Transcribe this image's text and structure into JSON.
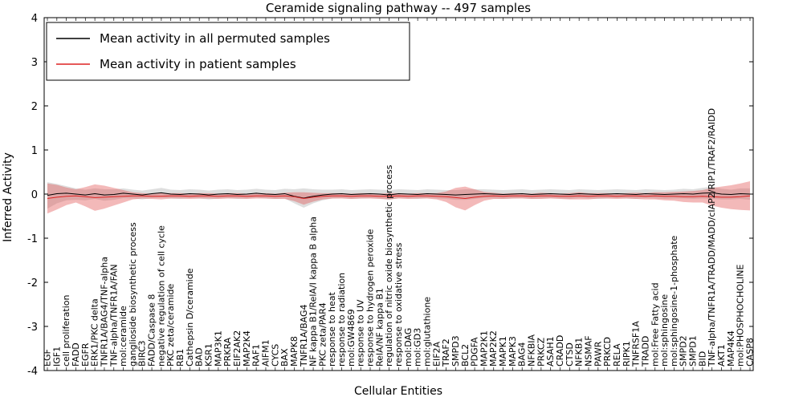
{
  "chart_data": {
    "type": "line",
    "title": "Ceramide signaling pathway -- 497 samples",
    "xlabel": "Cellular Entities",
    "ylabel": "Inferred Activity",
    "ylim": [
      -4,
      4
    ],
    "yticks": [
      4,
      3,
      2,
      1,
      0,
      -1,
      -2,
      -3,
      -4
    ],
    "grid": false,
    "legend_position": "upper left",
    "categories": [
      "EGF",
      "IGF1",
      "cell proliferation",
      "FADD",
      "EGFR",
      "ERK1/PKC delta",
      "TNFR1A/BAG4/TNF-alpha",
      "TNF-alpha/TNFR1A/FAN",
      "mol:ceramide",
      "ganglioside biosynthetic process",
      "BIRC3",
      "FADD/Caspase 8",
      "negative regulation of cell cycle",
      "PKC zeta/ceramide",
      "RB1",
      "Cathepsin D/ceramide",
      "BAD",
      "KSR1",
      "MAP3K1",
      "PRKRA",
      "EIF2AK2",
      "MAP2K4",
      "RAF1",
      "AIFM1",
      "CYCS",
      "BAX",
      "MAPK8",
      "TNFR1A/BAG4",
      "NF kappa B1/RelA/I kappa B alpha",
      "PKC zeta/PAR4",
      "response to heat",
      "response to radiation",
      "mol:GW4869",
      "response to UV",
      "response to hydrogen peroxide",
      "RelA/NF kappa B1",
      "regulation of nitric oxide biosynthetic process",
      "response to oxidative stress",
      "mol:DAG",
      "mol:GD3",
      "mol:glutathione",
      "EIF2A",
      "TRAF2",
      "SMPD3",
      "BCL2",
      "PDGFA",
      "MAP2K1",
      "MAP2K2",
      "MAPK1",
      "MAPK3",
      "BAG4",
      "NFKBIA",
      "PRKCZ",
      "ASAH1",
      "CRADD",
      "CTSD",
      "NFKB1",
      "NSMAF",
      "PAWR",
      "PRKCD",
      "RELA",
      "RIPK1",
      "TNFRSF1A",
      "TRADD",
      "mol:Free Fatty acid",
      "mol:sphingosine",
      "mol:sphingosine-1-phosphate",
      "SMPD2",
      "SMPD1",
      "BID",
      "TNF-alpha/TNFR1A/TRADD/MADD/cIAP2/RIP1/TRAF2/RAIDD",
      "AKT1",
      "MAP4K4",
      "mol:PHOSPHOCHOLINE",
      "CASP8"
    ],
    "series": [
      {
        "id": "permuted",
        "name": "Mean activity in all permuted samples",
        "color": "#000000",
        "band_color": "#bdbdbd",
        "band_opacity": 0.5,
        "values": [
          -0.03,
          0.01,
          0.02,
          0,
          -0.02,
          0.01,
          -0.02,
          -0.01,
          0.02,
          0,
          -0.02,
          0.01,
          0.03,
          0,
          -0.01,
          0.01,
          0,
          -0.02,
          0,
          0.01,
          -0.01,
          0,
          0.02,
          0,
          -0.01,
          0.01,
          -0.05,
          -0.09,
          -0.05,
          -0.02,
          0,
          0.01,
          -0.01,
          0,
          0.01,
          0,
          -0.02,
          0.01,
          0,
          -0.01,
          0.01,
          0,
          -0.01,
          -0.02,
          -0.01,
          0,
          0.01,
          0,
          -0.01,
          0,
          0.01,
          -0.01,
          0,
          0.01,
          0,
          -0.01,
          0.01,
          0,
          -0.01,
          0,
          0.01,
          0,
          -0.01,
          0.01,
          0,
          -0.01,
          0,
          0.01,
          0,
          0.02,
          0.03,
          0,
          -0.01,
          0.01,
          0
        ],
        "band_halfwidth": [
          0.3,
          0.22,
          0.16,
          0.13,
          0.12,
          0.12,
          0.13,
          0.12,
          0.11,
          0.1,
          0.1,
          0.1,
          0.11,
          0.1,
          0.1,
          0.1,
          0.1,
          0.1,
          0.1,
          0.1,
          0.1,
          0.1,
          0.1,
          0.1,
          0.1,
          0.11,
          0.16,
          0.22,
          0.16,
          0.12,
          0.1,
          0.1,
          0.1,
          0.1,
          0.1,
          0.1,
          0.11,
          0.1,
          0.1,
          0.1,
          0.1,
          0.1,
          0.1,
          0.11,
          0.12,
          0.11,
          0.1,
          0.1,
          0.1,
          0.1,
          0.1,
          0.1,
          0.1,
          0.1,
          0.1,
          0.1,
          0.1,
          0.1,
          0.1,
          0.1,
          0.1,
          0.1,
          0.1,
          0.1,
          0.1,
          0.1,
          0.1,
          0.11,
          0.11,
          0.12,
          0.14,
          0.12,
          0.11,
          0.12,
          0.13
        ]
      },
      {
        "id": "patient",
        "name": "Mean activity in patient samples",
        "color": "#dd2222",
        "band_color": "#e05050",
        "band_opacity": 0.4,
        "values": [
          -0.1,
          -0.07,
          -0.05,
          -0.04,
          -0.06,
          -0.08,
          -0.07,
          -0.06,
          -0.05,
          -0.04,
          -0.04,
          -0.05,
          -0.05,
          -0.04,
          -0.04,
          -0.05,
          -0.04,
          -0.04,
          -0.05,
          -0.04,
          -0.04,
          -0.05,
          -0.04,
          -0.04,
          -0.05,
          -0.04,
          -0.06,
          -0.1,
          -0.07,
          -0.05,
          -0.04,
          -0.04,
          -0.05,
          -0.04,
          -0.04,
          -0.05,
          -0.05,
          -0.04,
          -0.05,
          -0.04,
          -0.04,
          -0.05,
          -0.06,
          -0.08,
          -0.1,
          -0.07,
          -0.05,
          -0.04,
          -0.05,
          -0.04,
          -0.04,
          -0.05,
          -0.04,
          -0.04,
          -0.05,
          -0.05,
          -0.04,
          -0.05,
          -0.04,
          -0.04,
          -0.05,
          -0.04,
          -0.04,
          -0.05,
          -0.04,
          -0.05,
          -0.05,
          -0.06,
          -0.06,
          -0.05,
          -0.06,
          -0.07,
          -0.07,
          -0.06,
          -0.04
        ],
        "band_halfwidth": [
          0.34,
          0.28,
          0.2,
          0.15,
          0.22,
          0.3,
          0.26,
          0.2,
          0.14,
          0.08,
          0.06,
          0.06,
          0.07,
          0.06,
          0.06,
          0.06,
          0.06,
          0.06,
          0.06,
          0.06,
          0.06,
          0.06,
          0.06,
          0.06,
          0.06,
          0.07,
          0.1,
          0.14,
          0.1,
          0.07,
          0.06,
          0.06,
          0.06,
          0.06,
          0.06,
          0.06,
          0.07,
          0.06,
          0.06,
          0.06,
          0.06,
          0.07,
          0.12,
          0.22,
          0.27,
          0.18,
          0.1,
          0.07,
          0.06,
          0.06,
          0.06,
          0.06,
          0.07,
          0.06,
          0.06,
          0.07,
          0.08,
          0.07,
          0.06,
          0.06,
          0.06,
          0.06,
          0.07,
          0.07,
          0.08,
          0.09,
          0.1,
          0.12,
          0.13,
          0.14,
          0.2,
          0.24,
          0.27,
          0.3,
          0.33
        ]
      }
    ]
  }
}
